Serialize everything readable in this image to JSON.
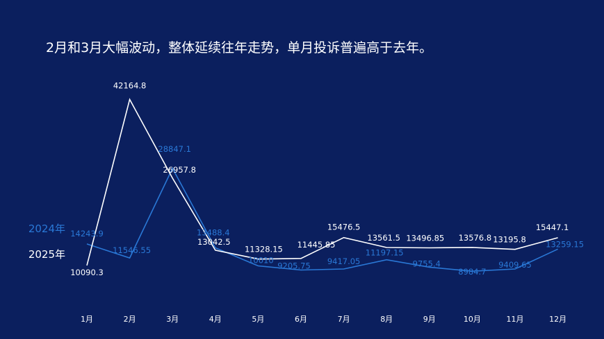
{
  "title": "2月和3月大幅波动，整体延续往年走势，单月投诉普遍高于去年。",
  "colors": {
    "background": "#0b1f5e",
    "series_2025": "#ffffff",
    "series_2024": "#2a78d6"
  },
  "chart_data": {
    "type": "line",
    "title": "2月和3月大幅波动，整体延续往年走势，单月投诉普遍高于去年。",
    "categories": [
      "1月",
      "2月",
      "3月",
      "4月",
      "5月",
      "6月",
      "7月",
      "8月",
      "9月",
      "10月",
      "11月",
      "12月"
    ],
    "series": [
      {
        "name": "2025年",
        "color": "#ffffff",
        "values": [
          10090.3,
          42164.8,
          26957.8,
          13042.5,
          11328.15,
          11445.85,
          15476.5,
          13561.5,
          13496.85,
          13576.8,
          13195.8,
          15447.1
        ],
        "labels": [
          "10090.3",
          "42164.8",
          "26957.8",
          "13042.5",
          "11328.15",
          "11445.85",
          "15476.5",
          "13561.5",
          "13496.85",
          "13576.8",
          "13195.8",
          "15447.1"
        ]
      },
      {
        "name": "2024年",
        "color": "#2a78d6",
        "values": [
          14243.9,
          11546.55,
          28847.1,
          13488.4,
          10010,
          9205.75,
          9417.05,
          11197.15,
          9755.4,
          8984.7,
          9409.65,
          13259.15
        ],
        "labels": [
          "14243.9",
          "11546.55",
          "28847.1",
          "13488.4",
          "10010",
          "9205.75",
          "9417.05",
          "11197.15",
          "9755.4",
          "8984.7",
          "9409.65",
          "13259.15"
        ]
      }
    ],
    "xlabel": "",
    "ylabel": "",
    "grid": false,
    "legend": "left"
  }
}
